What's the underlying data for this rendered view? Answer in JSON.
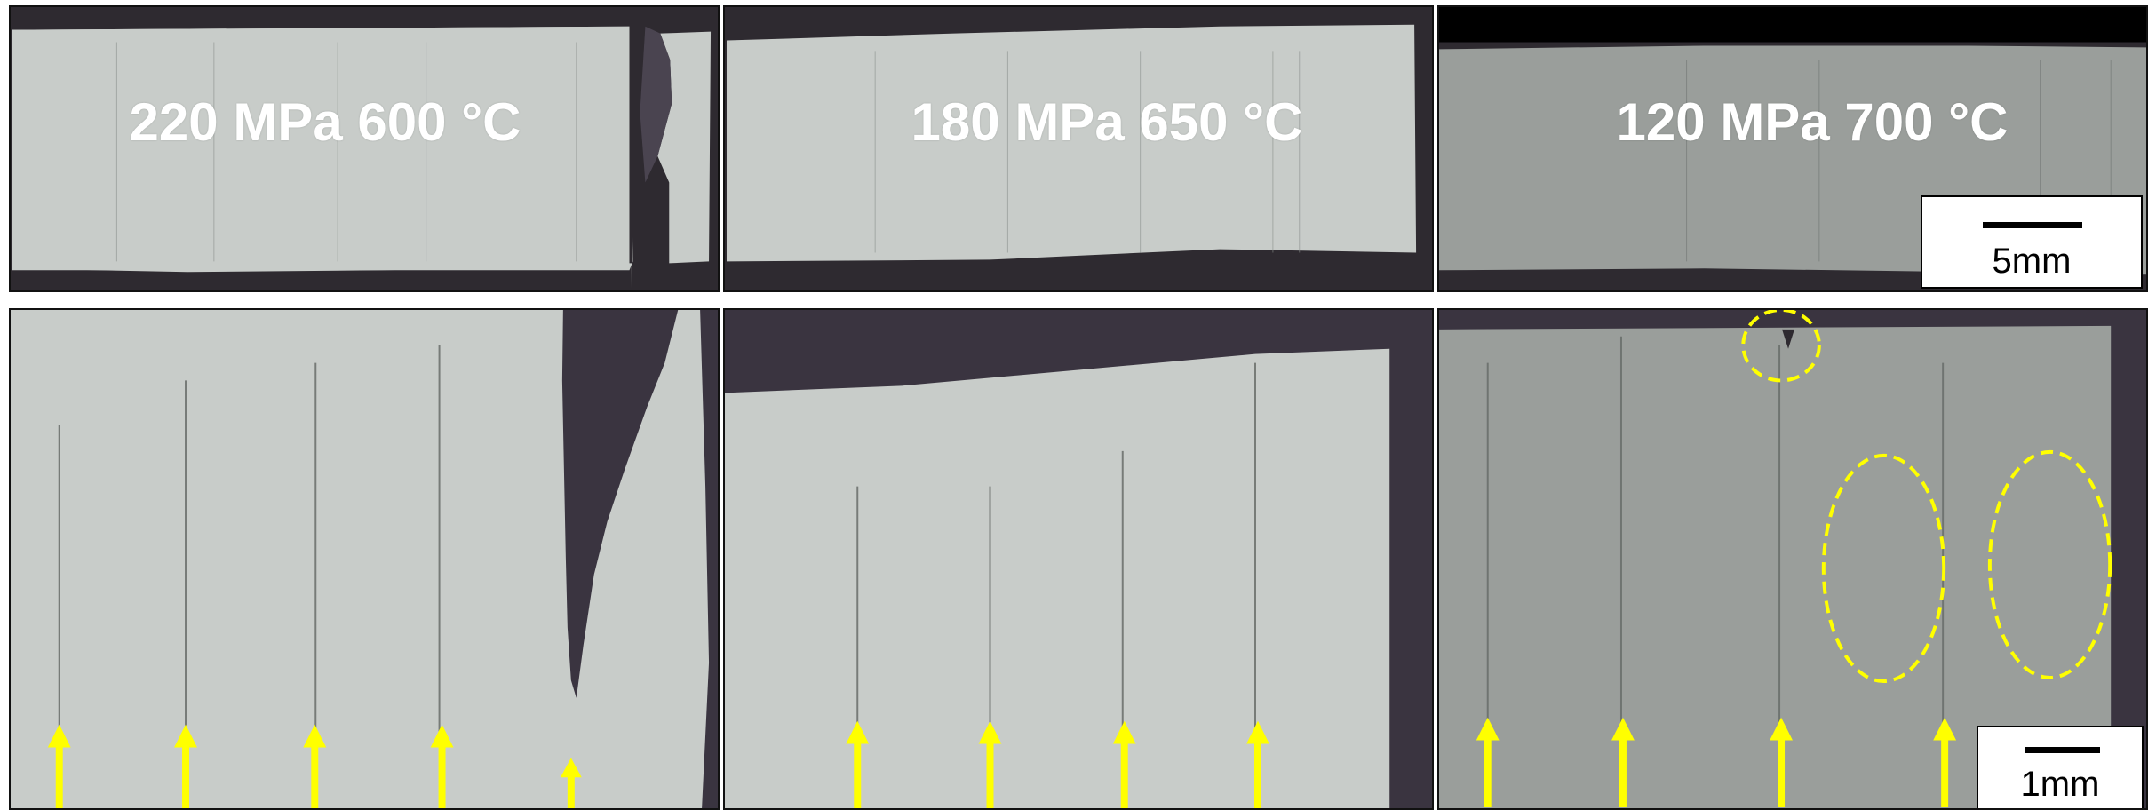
{
  "panels_top": [
    {
      "label": "220 MPa 600 °C"
    },
    {
      "label": "180 MPa 650 °C"
    },
    {
      "label": "120 MPa 700 °C"
    }
  ],
  "scale_bars": {
    "top": "5mm",
    "bottom": "1mm"
  },
  "colors": {
    "mount_dark": "#2e2a30",
    "metal_light": "#c8ccc9",
    "metal_700": "#9a9e9b",
    "arrow": "#ffff00",
    "annotation": "#ffff00"
  }
}
